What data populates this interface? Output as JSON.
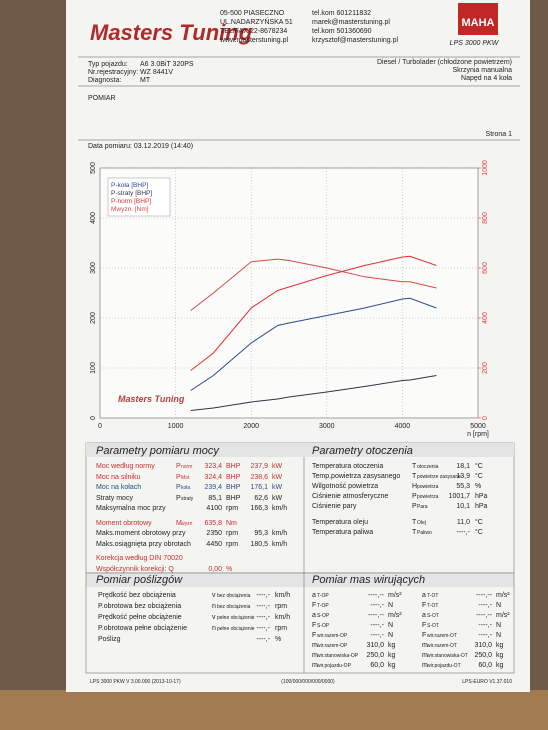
{
  "header": {
    "logo": "Masters Tuning",
    "address": [
      "05-500 PIASECZNO",
      "UL.NADARZYŃSKA 51",
      "TEL/FAX 22-8678234",
      "www.masterstuning.pl"
    ],
    "contact": [
      "tel.kom 601211832",
      "marek@masterstuning.pl",
      "tel.kom 501360690",
      "krzysztof@masterstuning.pl"
    ],
    "brand": "MAHA",
    "model": "LPS 3000 PKW"
  },
  "vehicle": {
    "rows": [
      [
        "Typ pojazdu:",
        "A6 3.0BiT 320PS"
      ],
      [
        "Nr.rejestracyjny:",
        "WZ 8441V"
      ],
      [
        "Diagnosta:",
        "MT"
      ]
    ],
    "details": [
      "Diesel / Turbolader (chłodzone powietrzem)",
      "Skrzynia manualna",
      "Napęd na 4 koła"
    ]
  },
  "section": "POMIAR",
  "page_label": "Strona 1",
  "date": "Data pomiaru: 03.12.2019 (14:40)",
  "chart_data": {
    "type": "line",
    "x_label": "n [rpm]",
    "xlim": [
      0,
      5000
    ],
    "xticks": [
      0,
      1000,
      2000,
      3000,
      4000,
      5000
    ],
    "ylim": [
      0,
      500
    ],
    "yticks": [
      0,
      100,
      200,
      300,
      400,
      500
    ],
    "y2lim": [
      0,
      1000
    ],
    "y2ticks": [
      0,
      200,
      400,
      600,
      800,
      1000
    ],
    "y2color": "#e04040",
    "grid": true,
    "legend": "upper left",
    "x": [
      1200,
      1500,
      2000,
      2350,
      2500,
      3000,
      3500,
      4000,
      4100,
      4450
    ],
    "series": [
      {
        "name": "P-koła [BHP]",
        "color": "#2c4a8c",
        "values": [
          55,
          85,
          150,
          185,
          190,
          205,
          220,
          238,
          239.4,
          220
        ]
      },
      {
        "name": "P-straty [BHP]",
        "color": "#333344",
        "values": [
          15,
          20,
          32,
          38,
          42,
          52,
          63,
          75,
          76,
          85
        ]
      },
      {
        "name": "P-norm [BHP]",
        "color": "#e03030",
        "values": [
          95,
          130,
          220,
          255,
          262,
          285,
          305,
          322,
          323.4,
          305
        ]
      },
      {
        "name": "Mwyzn. [Nm]",
        "color": "#d04848",
        "axis": "y2",
        "values": [
          430,
          500,
          625,
          635.8,
          630,
          600,
          565,
          545,
          545,
          520
        ]
      }
    ]
  },
  "power": {
    "title": "Parametry pomiaru mocy",
    "rows": [
      {
        "label": "Moc według normy",
        "sym": "P",
        "sub": "norm",
        "v1": "323,4",
        "u1": "BHP",
        "v2": "237,9",
        "u2": "kW",
        "color": "#c83030"
      },
      {
        "label": "Moc na silniku",
        "sym": "P",
        "sub": "Mot",
        "v1": "324,4",
        "u1": "BHP",
        "v2": "238,6",
        "u2": "kW",
        "color": "#c83030"
      },
      {
        "label": "Moc na kołach",
        "sym": "P",
        "sub": "koła",
        "v1": "239,4",
        "u1": "BHP",
        "v2": "176,1",
        "u2": "kW",
        "color": "#2c4a8c"
      },
      {
        "label": "Straty mocy",
        "sym": "P",
        "sub": "straty",
        "v1": "85,1",
        "u1": "BHP",
        "v2": "62,6",
        "u2": "kW"
      },
      {
        "label": "Maksymalna moc przy",
        "v1": "4100",
        "u1": "rpm",
        "v2": "166,3",
        "u2": "km/h"
      },
      {
        "label": "Moment obrotowy",
        "sym": "M",
        "sub": "wyzn",
        "v1": "635,8",
        "u1": "Nm",
        "color": "#c83030"
      },
      {
        "label": "Maks.moment obrotowy przy",
        "v1": "2350",
        "u1": "rpm",
        "v2": "95,3",
        "u2": "km/h"
      },
      {
        "label": "Maks.osiągnięta przy obrotach",
        "v1": "4450",
        "u1": "rpm",
        "v2": "180,5",
        "u2": "km/h"
      },
      {
        "label": "Korekcja według DIN 70020",
        "color": "#c83030"
      },
      {
        "label": "Współczynnik korekcji: Q",
        "v1": "0,00",
        "u1": "%",
        "color": "#c83030"
      }
    ]
  },
  "environment": {
    "title": "Parametry otoczenia",
    "rows": [
      {
        "label": "Temperatura otoczenia",
        "sym": "T",
        "sub": "otoczenia",
        "v1": "18,1",
        "u1": "°C"
      },
      {
        "label": "Temp.powietrza zasysanego",
        "sym": "T",
        "sub": "powietrze zasysane",
        "v1": "13,9",
        "u1": "°C"
      },
      {
        "label": "Wilgotność powietrza",
        "sym": "H",
        "sub": "powietrza",
        "v1": "55,3",
        "u1": "%"
      },
      {
        "label": "Ciśnienie atmosferyczne",
        "sym": "P",
        "sub": "powietrza",
        "v1": "1001,7",
        "u1": "hPa"
      },
      {
        "label": "Ciśnienie pary",
        "sym": "P",
        "sub": "Para",
        "v1": "10,1",
        "u1": "hPa"
      },
      {
        "label": "Temperatura oleju",
        "sym": "T",
        "sub": "Olej",
        "v1": "11,0",
        "u1": "°C"
      },
      {
        "label": "Temperatura paliwa",
        "sym": "T",
        "sub": "Paliwo",
        "v1": "----,-",
        "u1": "°C"
      }
    ]
  },
  "slip": {
    "title": "Pomiar poślizgów",
    "rows": [
      {
        "label": "Prędkość bez obciążenia",
        "sym": "v",
        "sub": "bez obciążenia",
        "v1": "----,-",
        "u1": "km/h"
      },
      {
        "label": "P.obrotowa bez obciążenia",
        "sym": "n",
        "sub": "bez obciążenia",
        "v1": "----,-",
        "u1": "rpm"
      },
      {
        "label": "Prędkość pełne obciążenie",
        "sym": "v",
        "sub": "pełne obciążenie",
        "v1": "----,-",
        "u1": "km/h"
      },
      {
        "label": "P.obrotowa pełne obciążenie",
        "sym": "n",
        "sub": "pełne obciążenie",
        "v1": "----,-",
        "u1": "rpm"
      },
      {
        "label": "Poślizg",
        "v1": "----,-",
        "u1": "%"
      }
    ]
  },
  "mass": {
    "title": "Pomiar mas wirujących",
    "left": [
      {
        "sym": "a",
        "sub": "T-OP",
        "v1": "----,--",
        "u1": "m/s²"
      },
      {
        "sym": "F",
        "sub": "T-OP",
        "v1": "----,-",
        "u1": "N"
      },
      {
        "sym": "a",
        "sub": "S-OP",
        "v1": "----,--",
        "u1": "m/s²"
      },
      {
        "sym": "F",
        "sub": "S-OP",
        "v1": "----,-",
        "u1": "N"
      },
      {
        "sym": "F",
        "sub": "wir.razem-OP",
        "v1": "----,-",
        "u1": "N"
      },
      {
        "sym": "m",
        "sub": "wir.razem-OP",
        "v1": "310,0",
        "u1": "kg"
      },
      {
        "sym": "m",
        "sub": "wir.stanowiska-OP",
        "v1": "250,0",
        "u1": "kg"
      },
      {
        "sym": "m",
        "sub": "wir.pojazdu-OP",
        "v1": "60,0",
        "u1": "kg"
      }
    ],
    "right": [
      {
        "sym": "a",
        "sub": "T-OT",
        "v1": "----,--",
        "u1": "m/s²"
      },
      {
        "sym": "F",
        "sub": "T-OT",
        "v1": "----,-",
        "u1": "N"
      },
      {
        "sym": "a",
        "sub": "S-OT",
        "v1": "----,--",
        "u1": "m/s²"
      },
      {
        "sym": "F",
        "sub": "S-OT",
        "v1": "----,-",
        "u1": "N"
      },
      {
        "sym": "F",
        "sub": "wir.razem-OT",
        "v1": "----,-",
        "u1": "N"
      },
      {
        "sym": "m",
        "sub": "wir.razem-OT",
        "v1": "310,0",
        "u1": "kg"
      },
      {
        "sym": "m",
        "sub": "wir.stanowiska-OT",
        "v1": "250,0",
        "u1": "kg"
      },
      {
        "sym": "m",
        "sub": "wir.pojazdu-OT",
        "v1": "60,0",
        "u1": "kg"
      }
    ]
  },
  "footer": [
    "LPS 3000 PKW V 3.00.000 (2013-10-17)",
    "(100/000/000/000/0000)",
    "LPS-EURO V1.37.010"
  ]
}
